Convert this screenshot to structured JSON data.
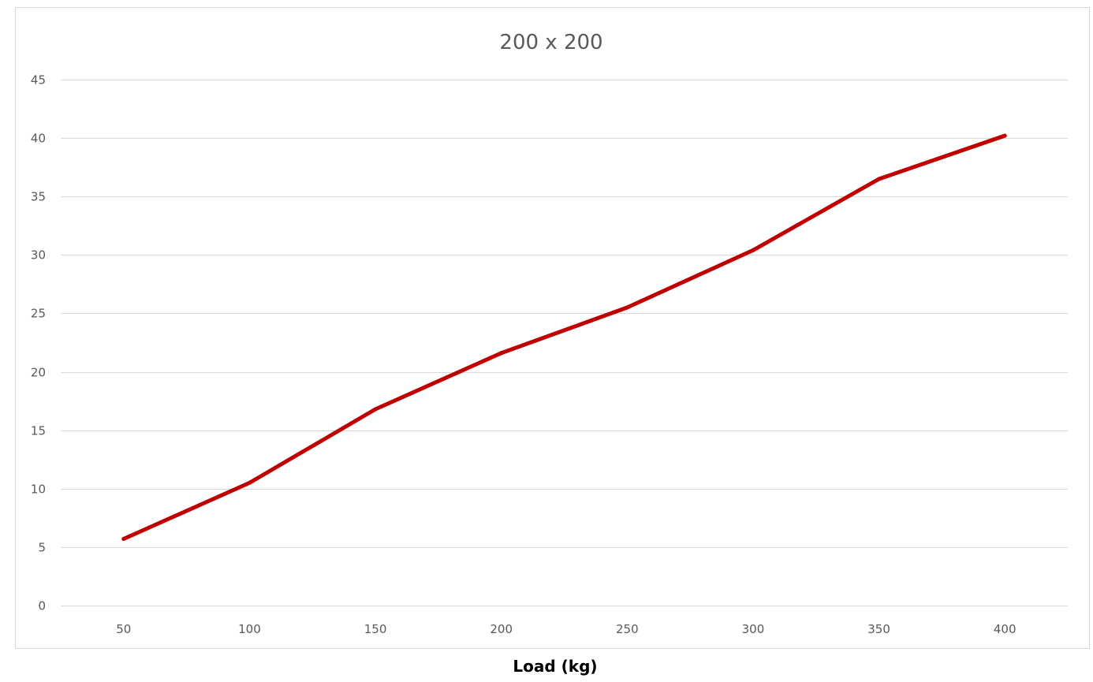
{
  "chart_data": {
    "type": "line",
    "title": "200 x 200",
    "xlabel": "Load (kg)",
    "ylabel": "",
    "categories": [
      "50",
      "100",
      "150",
      "200",
      "250",
      "300",
      "350",
      "400"
    ],
    "series": [
      {
        "values": [
          5.7,
          10.5,
          16.8,
          21.6,
          25.5,
          30.4,
          36.5,
          40.2
        ],
        "color": "#C00000"
      }
    ],
    "ylim": [
      0,
      45
    ],
    "yticks": [
      "0",
      "5",
      "10",
      "15",
      "20",
      "25",
      "30",
      "35",
      "40",
      "45"
    ],
    "ytick_values": [
      0,
      5,
      10,
      15,
      20,
      25,
      30,
      35,
      40,
      45
    ],
    "grid": true,
    "legend": "none"
  },
  "colors": {
    "series": "#C00000",
    "gridline": "#D9D9D9",
    "tick_text": "#595959",
    "axis_title": "#000000"
  }
}
